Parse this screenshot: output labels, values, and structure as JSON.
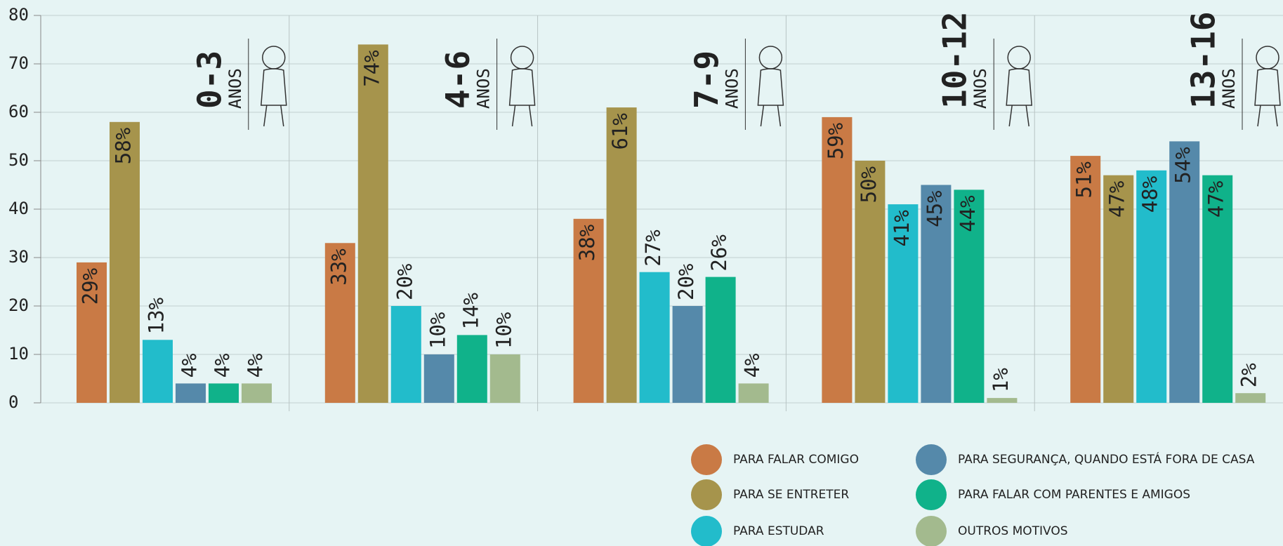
{
  "chart_data": {
    "type": "bar",
    "categories": [
      "0-3",
      "4-6",
      "7-9",
      "10-12",
      "13-16"
    ],
    "category_unit": "ANOS",
    "ylim": [
      0,
      80
    ],
    "yticks": [
      0,
      10,
      20,
      30,
      40,
      50,
      60,
      70,
      80
    ],
    "grid": true,
    "series": [
      {
        "name": "PARA FALAR COMIGO",
        "color": "#c97a45",
        "values": [
          29,
          33,
          38,
          59,
          51
        ],
        "value_labels": [
          "29%",
          "33%",
          "38%",
          "59%",
          "51%"
        ]
      },
      {
        "name": "PARA SE ENTRETER",
        "color": "#a6944c",
        "values": [
          58,
          74,
          61,
          50,
          47
        ],
        "value_labels": [
          "58%",
          "74%",
          "61%",
          "50%",
          "47%"
        ]
      },
      {
        "name": "PARA ESTUDAR",
        "color": "#22bccb",
        "values": [
          13,
          20,
          27,
          41,
          48
        ],
        "value_labels": [
          "13%",
          "20%",
          "27%",
          "41%",
          "48%"
        ]
      },
      {
        "name": "PARA SEGURANÇA, QUANDO ESTÁ FORA DE CASA",
        "color": "#5589aa",
        "values": [
          4,
          10,
          20,
          45,
          54
        ],
        "value_labels": [
          "4%",
          "10%",
          "20%",
          "45%",
          "54%"
        ]
      },
      {
        "name": "PARA FALAR COM PARENTES E AMIGOS",
        "color": "#10b28a",
        "values": [
          4,
          14,
          26,
          44,
          47
        ],
        "value_labels": [
          "4%",
          "14%",
          "26%",
          "44%",
          "47%"
        ]
      },
      {
        "name": "OUTROS MOTIVOS",
        "color": "#a3ba8e",
        "values": [
          4,
          10,
          4,
          1,
          2
        ],
        "value_labels": [
          "4%",
          "10%",
          "4%",
          "1%",
          "2%"
        ]
      }
    ]
  }
}
